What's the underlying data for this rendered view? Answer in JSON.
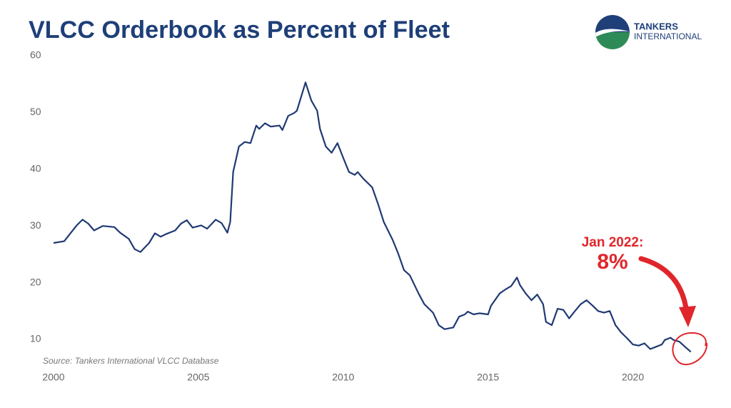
{
  "chart_data": {
    "type": "line",
    "title": "VLCC Orderbook as Percent of Fleet",
    "source": "Source: Tankers International VLCC Database",
    "logo": [
      "TANKERS",
      "INTERNATIONAL"
    ],
    "annotations": [
      "Jan 2022:",
      "8%"
    ],
    "annotation_color": "#e0262b",
    "x": [
      2000.0,
      2000.37,
      2000.6,
      2000.8,
      2001.0,
      2001.2,
      2001.4,
      2001.7,
      2002.1,
      2002.3,
      2002.6,
      2002.8,
      2003.0,
      2003.3,
      2003.5,
      2003.7,
      2003.9,
      2004.2,
      2004.4,
      2004.6,
      2004.8,
      2005.1,
      2005.3,
      2005.6,
      2005.8,
      2006.0,
      2006.1,
      2006.2,
      2006.4,
      2006.6,
      2006.8,
      2007.0,
      2007.1,
      2007.3,
      2007.5,
      2007.8,
      2007.9,
      2008.1,
      2008.3,
      2008.4,
      2008.7,
      2008.9,
      2009.1,
      2009.2,
      2009.4,
      2009.6,
      2009.8,
      2010.0,
      2010.2,
      2010.4,
      2010.5,
      2010.7,
      2011.0,
      2011.2,
      2011.4,
      2011.7,
      2011.9,
      2012.1,
      2012.3,
      2012.6,
      2012.8,
      2013.1,
      2013.3,
      2013.5,
      2013.8,
      2014.0,
      2014.2,
      2014.3,
      2014.5,
      2014.7,
      2015.0,
      2015.1,
      2015.4,
      2015.6,
      2015.8,
      2016.0,
      2016.1,
      2016.3,
      2016.5,
      2016.7,
      2016.9,
      2017.0,
      2017.2,
      2017.4,
      2017.6,
      2017.8,
      2018.0,
      2018.2,
      2018.4,
      2018.6,
      2018.8,
      2019.0,
      2019.2,
      2019.4,
      2019.6,
      2019.8,
      2020.0,
      2020.2,
      2020.4,
      2020.6,
      2020.8,
      2021.0,
      2021.1,
      2021.3,
      2021.4,
      2021.6,
      2021.8,
      2022.0
    ],
    "series": [
      {
        "name": "VLCC orderbook",
        "color": "#1f3a73",
        "values": [
          27.0,
          27.3,
          28.8,
          30.1,
          31.1,
          30.4,
          29.2,
          30.0,
          29.8,
          28.8,
          27.7,
          25.9,
          25.4,
          27.0,
          28.7,
          28.1,
          28.6,
          29.2,
          30.4,
          31.0,
          29.7,
          30.1,
          29.5,
          31.1,
          30.5,
          28.8,
          30.7,
          39.5,
          44.0,
          44.8,
          44.6,
          47.7,
          47.1,
          48.1,
          47.5,
          47.7,
          46.9,
          49.4,
          49.9,
          50.3,
          55.3,
          52.1,
          50.3,
          47.1,
          44.0,
          42.9,
          44.6,
          42.0,
          39.5,
          39.0,
          39.5,
          38.3,
          36.8,
          33.9,
          30.7,
          27.6,
          25.1,
          22.2,
          21.3,
          18.1,
          16.2,
          14.7,
          12.5,
          11.8,
          12.1,
          14.0,
          14.4,
          14.9,
          14.4,
          14.6,
          14.4,
          15.9,
          18.1,
          18.8,
          19.4,
          20.9,
          19.6,
          18.1,
          16.9,
          17.9,
          16.2,
          13.1,
          12.5,
          15.4,
          15.2,
          13.7,
          15.0,
          16.2,
          16.9,
          16.0,
          15.0,
          14.7,
          15.0,
          12.5,
          11.2,
          10.2,
          9.1,
          8.9,
          9.3,
          8.3,
          8.7,
          9.1,
          9.9,
          10.3,
          9.9,
          9.6,
          8.7,
          7.8
        ]
      }
    ],
    "xlim": [
      2000,
      2022.5
    ],
    "xticks": [
      2000,
      2005,
      2010,
      2015,
      2020
    ],
    "ylim": [
      4,
      60
    ],
    "yticks": [
      10,
      20,
      30,
      40,
      50,
      60
    ],
    "grid": false
  }
}
